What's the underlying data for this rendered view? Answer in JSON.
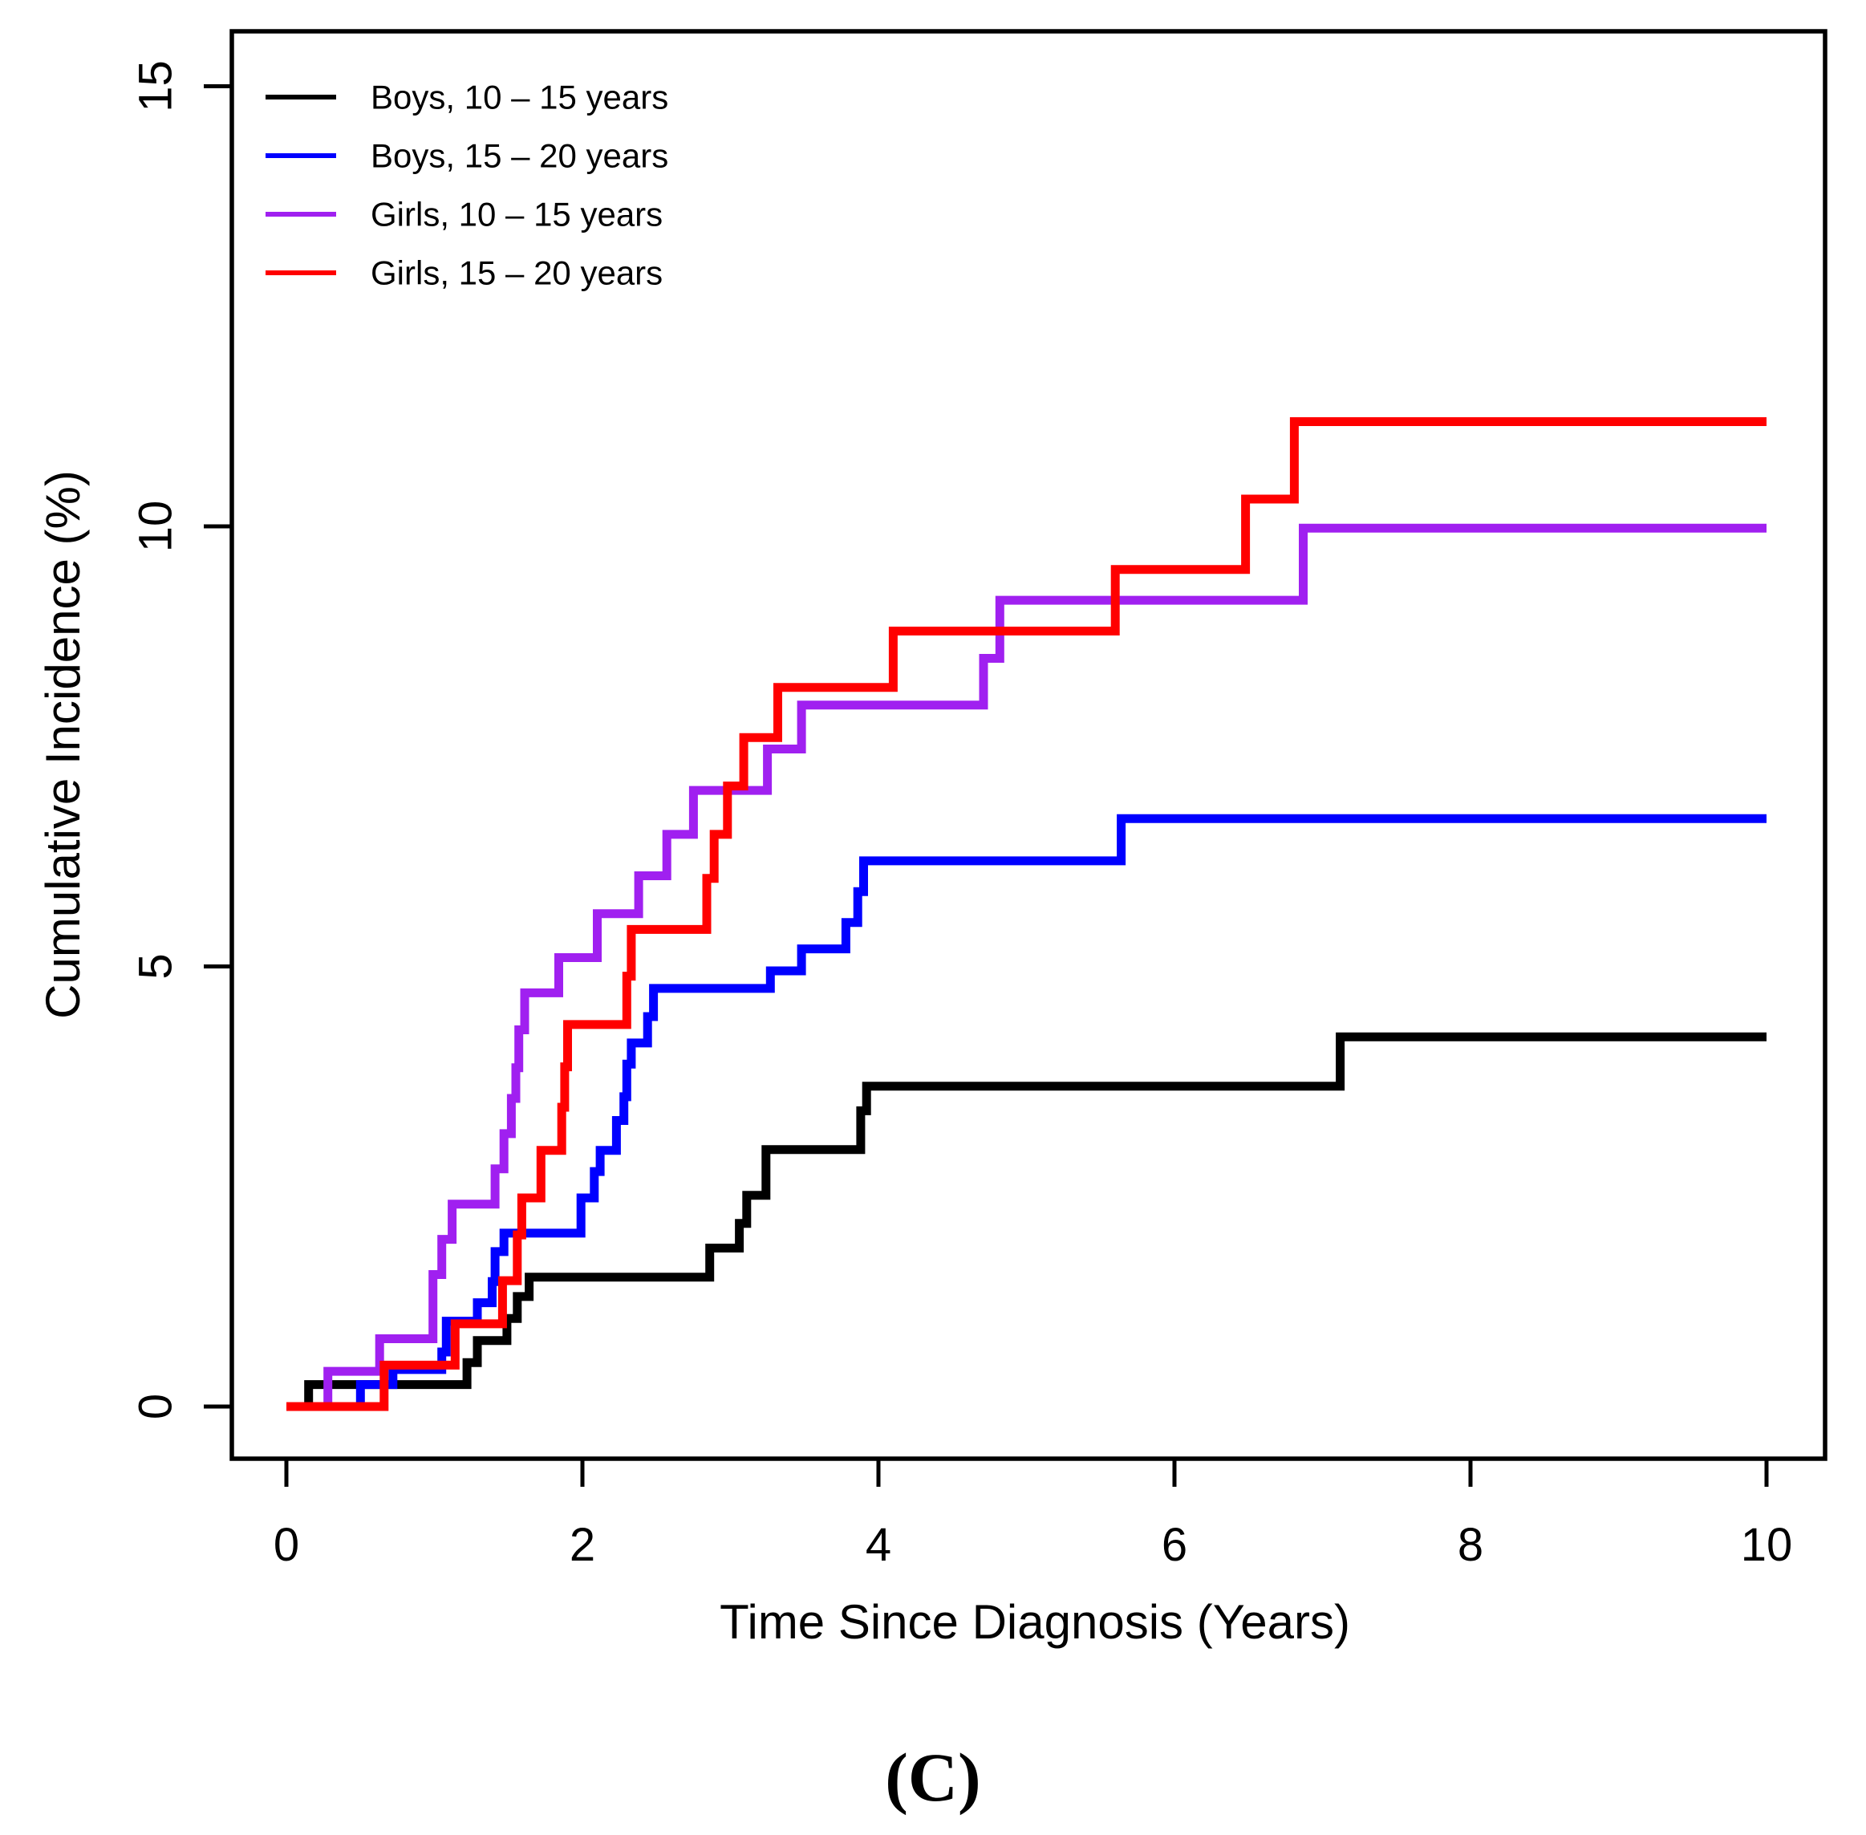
{
  "chart_data": {
    "type": "line",
    "subtype": "step-function-cumulative-incidence",
    "title": "",
    "xlabel": "Time Since Diagnosis (Years)",
    "ylabel": "Cumulative Incidence (%)",
    "caption": "(C)",
    "xlim": [
      0,
      10
    ],
    "ylim": [
      0,
      15
    ],
    "x_ticks": [
      0,
      2,
      4,
      6,
      8,
      10
    ],
    "y_ticks": [
      0,
      5,
      10,
      15
    ],
    "grid": false,
    "legend_position": "top-left",
    "axis_color": "#000000",
    "series": [
      {
        "name": "Boys, 10 – 15 years",
        "color": "#000000",
        "steps": [
          [
            0,
            0
          ],
          [
            0.15,
            0.25
          ],
          [
            1.22,
            0.5
          ],
          [
            1.29,
            0.75
          ],
          [
            1.49,
            1.0
          ],
          [
            1.56,
            1.25
          ],
          [
            1.64,
            1.47
          ],
          [
            2.86,
            1.8
          ],
          [
            3.06,
            2.08
          ],
          [
            3.11,
            2.4
          ],
          [
            3.24,
            2.92
          ],
          [
            3.88,
            3.36
          ],
          [
            3.92,
            3.64
          ],
          [
            7.12,
            4.2
          ],
          [
            10,
            4.2
          ]
        ]
      },
      {
        "name": "Boys, 15 – 20 years",
        "color": "#0000ff",
        "steps": [
          [
            0,
            0
          ],
          [
            0.5,
            0.25
          ],
          [
            0.72,
            0.42
          ],
          [
            1.05,
            0.62
          ],
          [
            1.08,
            0.97
          ],
          [
            1.29,
            1.18
          ],
          [
            1.39,
            1.42
          ],
          [
            1.41,
            1.76
          ],
          [
            1.47,
            1.97
          ],
          [
            1.99,
            2.37
          ],
          [
            2.08,
            2.67
          ],
          [
            2.12,
            2.91
          ],
          [
            2.23,
            3.25
          ],
          [
            2.28,
            3.52
          ],
          [
            2.3,
            3.89
          ],
          [
            2.33,
            4.13
          ],
          [
            2.44,
            4.43
          ],
          [
            2.48,
            4.75
          ],
          [
            3.27,
            4.95
          ],
          [
            3.48,
            5.2
          ],
          [
            3.78,
            5.5
          ],
          [
            3.86,
            5.85
          ],
          [
            3.9,
            6.2
          ],
          [
            5.64,
            6.68
          ],
          [
            10,
            6.68
          ]
        ]
      },
      {
        "name": "Girls, 10 – 15 years",
        "color": "#a020f0",
        "steps": [
          [
            0,
            0
          ],
          [
            0.28,
            0.4
          ],
          [
            0.63,
            0.77
          ],
          [
            0.99,
            1.5
          ],
          [
            1.05,
            1.9
          ],
          [
            1.12,
            2.3
          ],
          [
            1.41,
            2.7
          ],
          [
            1.47,
            3.1
          ],
          [
            1.52,
            3.5
          ],
          [
            1.55,
            3.85
          ],
          [
            1.57,
            4.28
          ],
          [
            1.61,
            4.7
          ],
          [
            1.84,
            5.1
          ],
          [
            2.1,
            5.6
          ],
          [
            2.38,
            6.03
          ],
          [
            2.57,
            6.5
          ],
          [
            2.75,
            7.0
          ],
          [
            3.25,
            7.47
          ],
          [
            3.48,
            7.97
          ],
          [
            4.71,
            8.5
          ],
          [
            4.82,
            9.16
          ],
          [
            6.87,
            9.98
          ],
          [
            10,
            9.98
          ]
        ]
      },
      {
        "name": "Girls, 15 – 20 years",
        "color": "#ff0000",
        "steps": [
          [
            0,
            0
          ],
          [
            0.66,
            0.47
          ],
          [
            1.14,
            0.94
          ],
          [
            1.46,
            1.43
          ],
          [
            1.56,
            1.95
          ],
          [
            1.59,
            2.37
          ],
          [
            1.72,
            2.91
          ],
          [
            1.86,
            3.4
          ],
          [
            1.88,
            3.86
          ],
          [
            1.9,
            4.34
          ],
          [
            2.3,
            4.89
          ],
          [
            2.33,
            5.42
          ],
          [
            2.84,
            6.0
          ],
          [
            2.89,
            6.5
          ],
          [
            2.98,
            7.05
          ],
          [
            3.09,
            7.6
          ],
          [
            3.32,
            8.17
          ],
          [
            4.1,
            8.81
          ],
          [
            5.6,
            9.51
          ],
          [
            6.48,
            10.31
          ],
          [
            6.81,
            11.19
          ],
          [
            10,
            11.19
          ]
        ]
      }
    ]
  }
}
